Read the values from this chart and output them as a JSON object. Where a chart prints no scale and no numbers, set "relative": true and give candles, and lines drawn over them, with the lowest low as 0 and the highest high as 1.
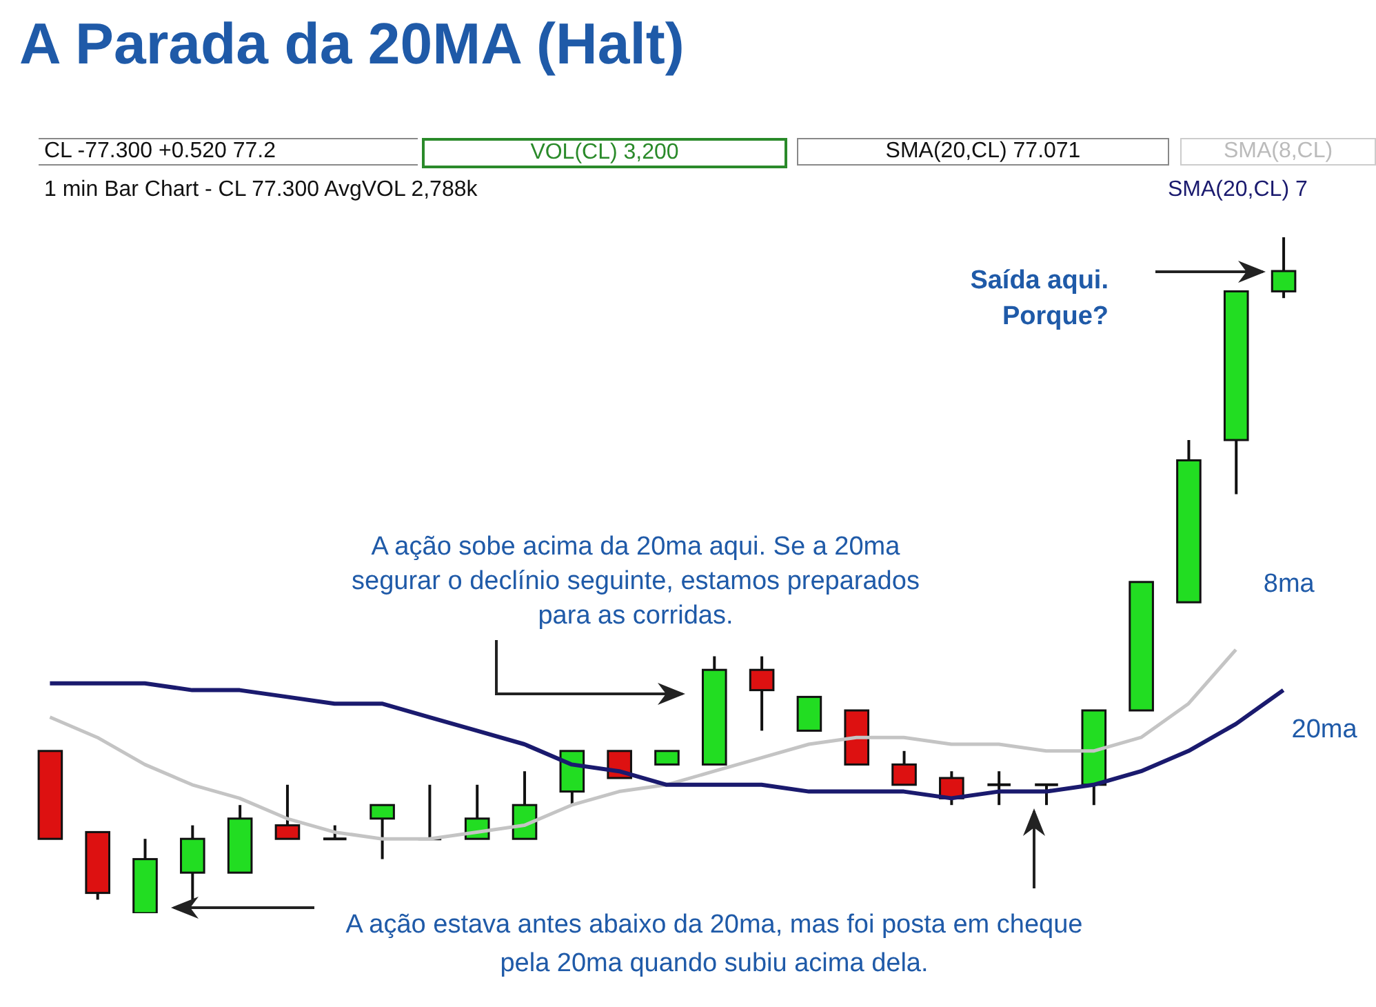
{
  "chart_data": {
    "type": "candlestick",
    "title": "A Parada da 20MA (Halt)",
    "relative": true,
    "categories": [
      null,
      null,
      null,
      null,
      null,
      null,
      null,
      null,
      null,
      null,
      null,
      null,
      null,
      null,
      null,
      null,
      null,
      null,
      null,
      null,
      null,
      null,
      null,
      null,
      null,
      null,
      null
    ],
    "ohlc": [
      [
        0.24,
        0.24,
        0.11,
        0.11
      ],
      [
        0.12,
        0.12,
        0.02,
        0.03
      ],
      [
        0.0,
        0.11,
        0.0,
        0.08
      ],
      [
        0.06,
        0.13,
        0.02,
        0.11
      ],
      [
        0.06,
        0.16,
        0.06,
        0.14
      ],
      [
        0.13,
        0.19,
        0.11,
        0.11
      ],
      [
        0.11,
        0.13,
        0.11,
        0.11
      ],
      [
        0.14,
        0.16,
        0.08,
        0.16
      ],
      [
        0.11,
        0.19,
        0.11,
        0.11
      ],
      [
        0.11,
        0.19,
        0.11,
        0.14
      ],
      [
        0.11,
        0.21,
        0.11,
        0.16
      ],
      [
        0.18,
        0.24,
        0.16,
        0.24
      ],
      [
        0.24,
        0.24,
        0.2,
        0.2
      ],
      [
        0.22,
        0.24,
        0.22,
        0.24
      ],
      [
        0.22,
        0.38,
        0.22,
        0.36
      ],
      [
        0.36,
        0.38,
        0.27,
        0.33
      ],
      [
        0.27,
        0.32,
        0.27,
        0.32
      ],
      [
        0.3,
        0.3,
        0.22,
        0.22
      ],
      [
        0.22,
        0.24,
        0.19,
        0.19
      ],
      [
        0.2,
        0.21,
        0.16,
        0.17
      ],
      [
        0.19,
        0.21,
        0.16,
        0.19
      ],
      [
        0.19,
        0.19,
        0.16,
        0.19
      ],
      [
        0.19,
        0.3,
        0.16,
        0.3
      ],
      [
        0.3,
        0.49,
        0.3,
        0.49
      ],
      [
        0.46,
        0.7,
        0.46,
        0.67
      ],
      [
        0.7,
        0.92,
        0.62,
        0.92
      ],
      [
        0.92,
        1.0,
        0.91,
        0.95
      ]
    ],
    "colors": [
      "#dd1111",
      "#dd1111",
      "#22dd22",
      "#22dd22",
      "#22dd22",
      "#dd1111",
      "#111111",
      "#22dd22",
      "#111111",
      "#22dd22",
      "#22dd22",
      "#22dd22",
      "#dd1111",
      "#22dd22",
      "#22dd22",
      "#dd1111",
      "#22dd22",
      "#dd1111",
      "#dd1111",
      "#dd1111",
      "#111111",
      "#111111",
      "#22dd22",
      "#22dd22",
      "#22dd22",
      "#22dd22",
      "#22dd22"
    ],
    "series": [
      {
        "name": "8ma",
        "type": "line",
        "color": "#c4c4c4",
        "values": [
          0.29,
          0.26,
          0.22,
          0.19,
          0.17,
          0.14,
          0.12,
          0.11,
          0.11,
          0.12,
          0.13,
          0.16,
          0.18,
          0.19,
          0.21,
          0.23,
          0.25,
          0.26,
          0.26,
          0.25,
          0.25,
          0.24,
          0.24,
          0.26,
          0.31,
          0.39,
          null
        ]
      },
      {
        "name": "20ma",
        "type": "line",
        "color": "#1a1a6e",
        "values": [
          0.34,
          0.34,
          0.34,
          0.33,
          0.33,
          0.32,
          0.31,
          0.31,
          0.29,
          0.27,
          0.25,
          0.22,
          0.21,
          0.19,
          0.19,
          0.19,
          0.18,
          0.18,
          0.18,
          0.17,
          0.18,
          0.18,
          0.19,
          0.21,
          0.24,
          0.28,
          0.33
        ]
      }
    ],
    "annotations": [
      "CL -77.300 +0.520 77.2",
      "VOL(CL) 3,200",
      "SMA(20,CL) 77.071",
      "SMA(8,CL)",
      "1 min Bar Chart - CL 77.300 AvgVOL 2,788k",
      "SMA(20,CL) 7",
      "A ação sobe acima da 20ma aqui. Se a 20ma segurar o declínio seguinte, estamos preparados para as corridas.",
      "A ação estava antes abaixo da 20ma, mas foi posta em cheque pela 20ma quando subiu acima dela.",
      "Saída aqui. Porque?"
    ]
  }
}
